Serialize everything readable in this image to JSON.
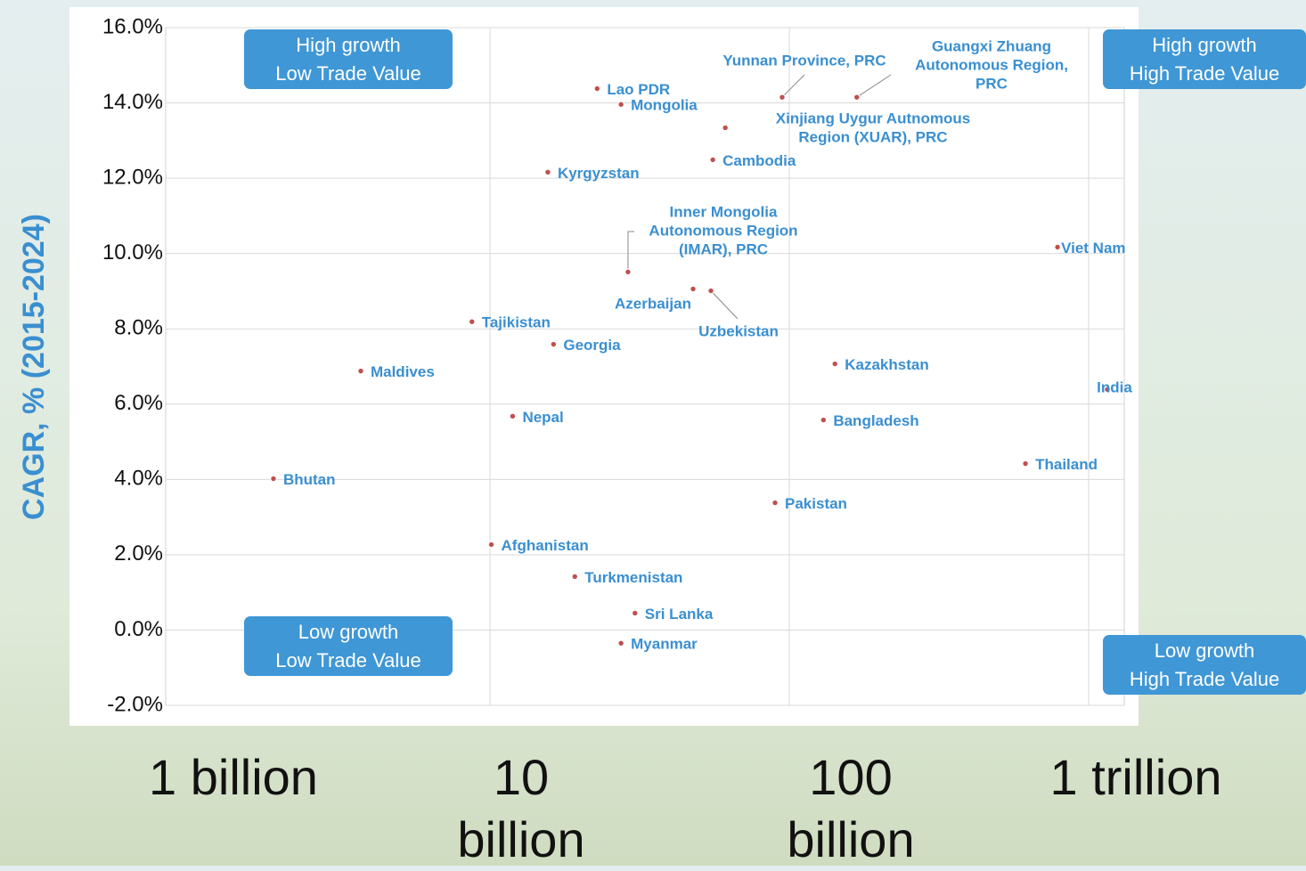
{
  "chart_data": {
    "type": "scatter",
    "y_label": "CAGR, % (2015-2024)",
    "x_scale": "log",
    "xlim": [
      0.825,
      1315
    ],
    "xticks": [
      {
        "value": 1,
        "label": "1 billion"
      },
      {
        "value": 10,
        "label": "10 billion"
      },
      {
        "value": 100,
        "label": "100 billion"
      },
      {
        "value": 1000,
        "label": "1 trillion"
      }
    ],
    "ylim": [
      -2,
      16
    ],
    "yticks": [
      {
        "value": -2,
        "label": "-2.0%"
      },
      {
        "value": 0,
        "label": "0.0%"
      },
      {
        "value": 2,
        "label": "2.0%"
      },
      {
        "value": 4,
        "label": "4.0%"
      },
      {
        "value": 6,
        "label": "6.0%"
      },
      {
        "value": 8,
        "label": "8.0%"
      },
      {
        "value": 10,
        "label": "10.0%"
      },
      {
        "value": 12,
        "label": "12.0%"
      },
      {
        "value": 14,
        "label": "14.0%"
      },
      {
        "value": 16,
        "label": "16.0%"
      }
    ],
    "grid": true,
    "color": "#c0504d",
    "label_color": "#3a8fd0",
    "labels": [
      "Lao PDR",
      "Mongolia",
      "Yunnan Province, PRC",
      [
        "Guangxi Zhuang",
        "Autonomous Region,",
        "PRC"
      ],
      [
        "Xinjiang Uygur Autnomous",
        "Region (XUAR), PRC"
      ],
      "Cambodia",
      "Kyrgyzstan",
      [
        "Inner Mongolia",
        "Autonomous Region",
        "(IMAR), PRC"
      ],
      "Viet Nam",
      "Azerbaijan",
      "Uzbekistan",
      "Tajikistan",
      "Georgia",
      "Maldives",
      "Kazakhstan",
      "India",
      "Nepal",
      "Bangladesh",
      "Thailand",
      "Bhutan",
      "Pakistan",
      "Afghanistan",
      "Turkmenistan",
      "Sri Lanka",
      "Myanmar"
    ],
    "x": [
      22.8,
      27.4,
      94.6,
      168,
      61.1,
      55.5,
      15.6,
      28.9,
      787,
      47.7,
      54.7,
      8.7,
      16.3,
      3.7,
      142,
      1155,
      11.9,
      130,
      615,
      1.89,
      89.6,
      10.1,
      19.2,
      30.5,
      27.4
    ],
    "values": [
      14.38,
      13.96,
      14.15,
      14.15,
      13.34,
      12.49,
      12.16,
      9.51,
      10.17,
      9.06,
      9.01,
      8.19,
      7.59,
      6.88,
      7.07,
      6.39,
      5.68,
      5.58,
      4.42,
      4.02,
      3.38,
      2.27,
      1.42,
      0.45,
      -0.35
    ],
    "quadrant_labels": [
      [
        "High growth",
        "Low Trade Value"
      ],
      [
        "High growth",
        "High Trade Value"
      ],
      [
        "Low growth",
        "Low Trade Value"
      ],
      [
        "Low growth",
        "High Trade Value"
      ]
    ]
  }
}
